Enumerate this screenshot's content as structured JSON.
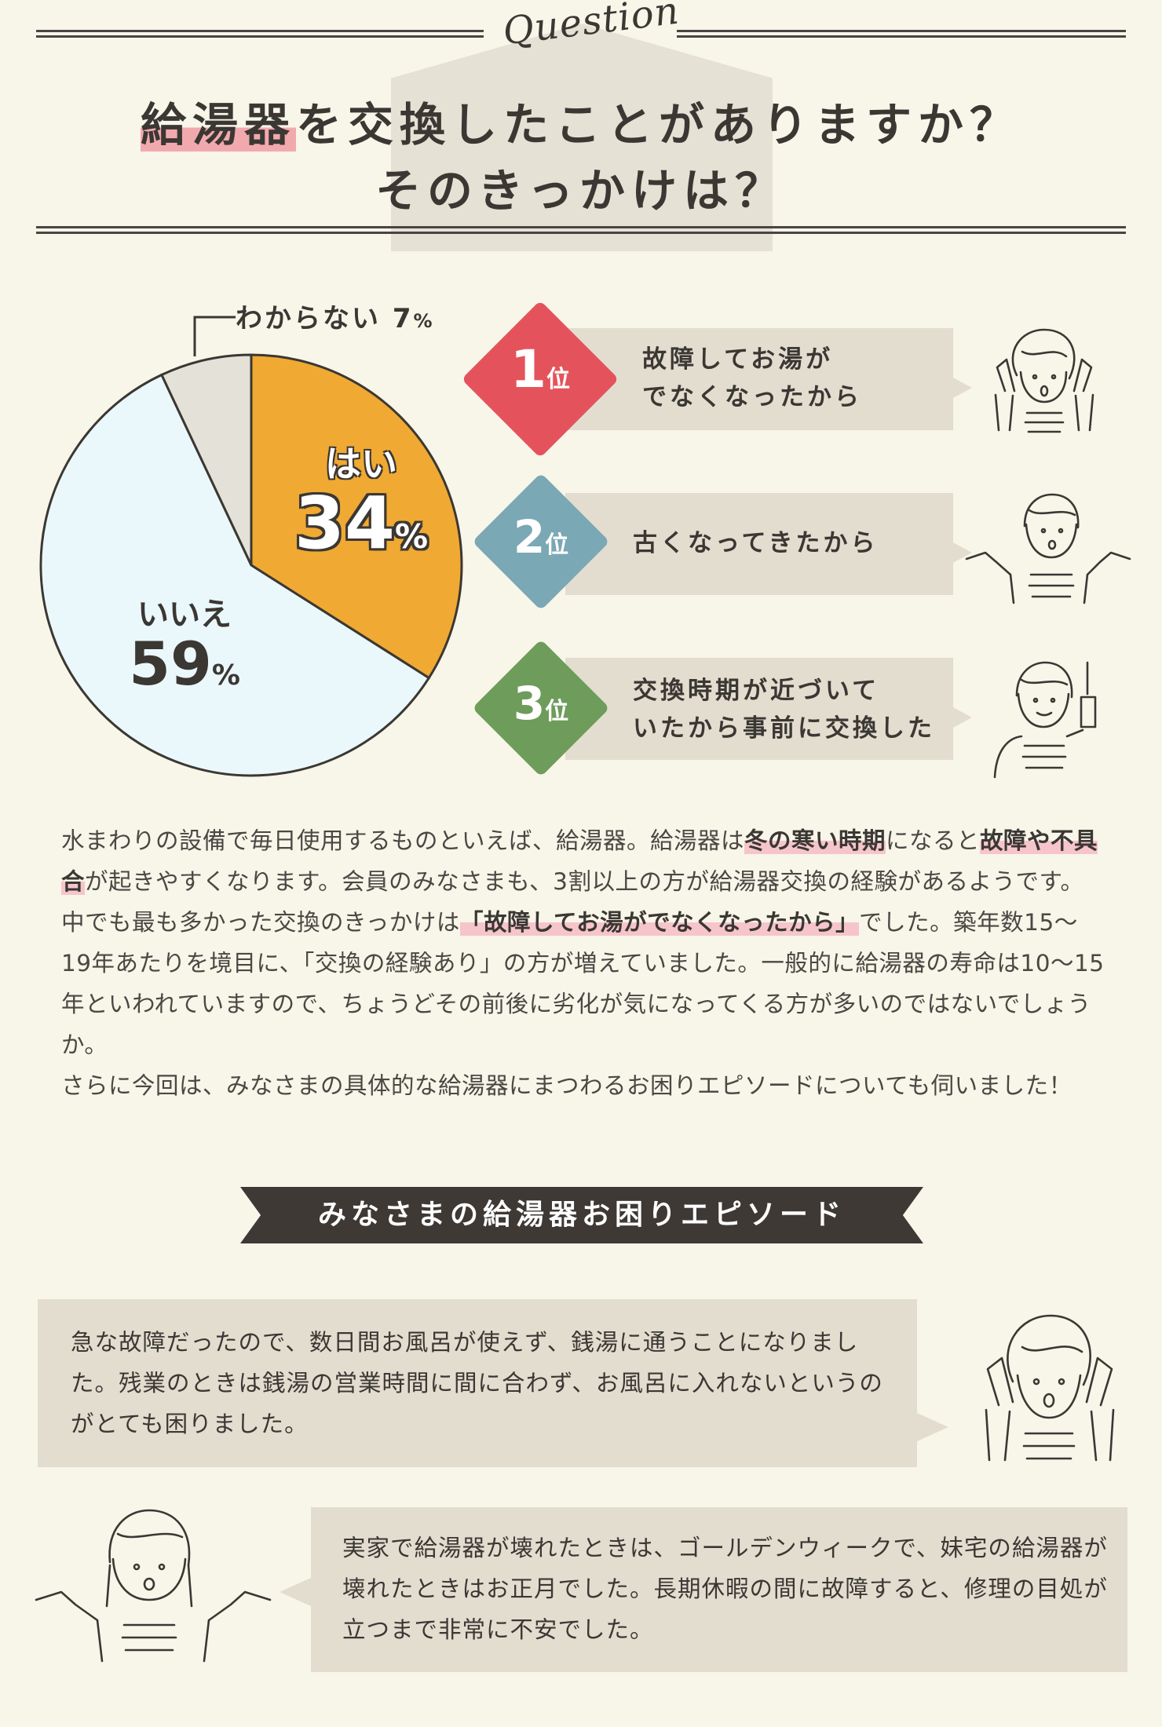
{
  "header": {
    "question_word": "Question",
    "title_line1_highlight": "給湯器",
    "title_line1_rest": "を交換したことがありますか？",
    "title_line2": "そのきっかけは？"
  },
  "chart_data": {
    "type": "pie",
    "slices": [
      {
        "label": "はい",
        "value": 34,
        "color": "#f0a932"
      },
      {
        "label": "いいえ",
        "value": 59,
        "color": "#eaf8fb"
      },
      {
        "label": "わからない",
        "value": 7,
        "color": "#e4e1d8"
      }
    ]
  },
  "pie_labels": {
    "yes_name": "はい",
    "yes_value": "34",
    "yes_unit": "%",
    "no_name": "いいえ",
    "no_value": "59",
    "no_unit": "%",
    "unknown_name": "わからない",
    "unknown_value": "7",
    "unknown_unit": "%"
  },
  "ranking": [
    {
      "num": "1",
      "suffix": "位",
      "line1": "故障してお湯が",
      "line2": "でなくなったから",
      "color": "#e4535c"
    },
    {
      "num": "2",
      "suffix": "位",
      "line1": "古くなってきたから",
      "line2": "",
      "color": "#7aa8b4"
    },
    {
      "num": "3",
      "suffix": "位",
      "line1": "交換時期が近づいて",
      "line2": "いたから事前に交換した",
      "color": "#6e9c5a"
    }
  ],
  "body": {
    "p1_a": "水まわりの設備で毎日使用するものといえば、給湯器。給湯器は",
    "p1_h1": "冬の寒い時期",
    "p1_b": "になると",
    "p1_h2": "故障や不具合",
    "p1_c": "が起きやすくなります。会員のみなさまも、3割以上の方が給湯器交換の経験があるようです。中でも最も多かった交換のきっかけは",
    "p1_h3": "「故障してお湯がでなくなったから」",
    "p1_d": "でした。築年数15〜19年あたりを境目に、「交換の経験あり」の方が増えていました。一般的に給湯器の寿命は10〜15年といわれていますので、ちょうどその前後に劣化が気になってくる方が多いのではないでしょうか。",
    "p2": "さらに今回は、みなさまの具体的な給湯器にまつわるお困りエピソードについても伺いました！"
  },
  "banner": {
    "label": "みなさまの給湯器お困りエピソード"
  },
  "episodes": [
    {
      "text": "急な故障だったので、数日間お風呂が使えず、銭湯に通うことになりました。残業のときは銭湯の営業時間に間に合わず、お風呂に入れないというのがとても困りました。"
    },
    {
      "text": "実家で給湯器が壊れたときは、ゴールデンウィークで、妹宅の給湯器が壊れたときはお正月でした。長期休暇の間に故障すると、修理の目処が立つまで非常に不安でした。"
    }
  ]
}
